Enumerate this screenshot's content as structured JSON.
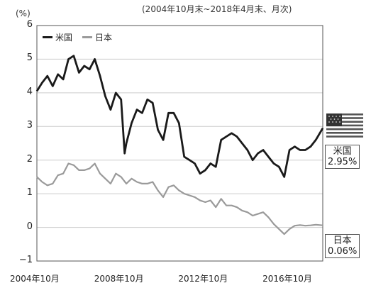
{
  "header": {
    "subtitle": "(2004年10月末~2018年4月末、月次)",
    "unit": "(%)"
  },
  "legend": {
    "us": "米国",
    "jp": "日本"
  },
  "end_labels": {
    "us_name": "米国",
    "us_value": "2.95%",
    "jp_name": "日本",
    "jp_value": "0.06%"
  },
  "colors": {
    "us": "#1a1a1a",
    "jp": "#9a9a9a",
    "grid": "#cccccc",
    "frame": "#555555"
  },
  "icons": {
    "us_flag": "us-flag-icon"
  },
  "chart_data": {
    "type": "line",
    "title": "",
    "subtitle": "(2004年10月末~2018年4月末、月次)",
    "xlabel": "",
    "ylabel": "(%)",
    "x_ticks": [
      "2004年10月",
      "2008年10月",
      "2012年10月",
      "2016年10月"
    ],
    "y_ticks": [
      "6",
      "5",
      "4",
      "3",
      "2",
      "1",
      "0",
      "−1"
    ],
    "ylim": [
      -1,
      6
    ],
    "xlim": [
      2004.75,
      2018.33
    ],
    "grid": true,
    "legend_position": "top-left",
    "series": [
      {
        "name": "米国",
        "x": [
          2004.75,
          2005.0,
          2005.25,
          2005.5,
          2005.75,
          2006.0,
          2006.25,
          2006.5,
          2006.75,
          2007.0,
          2007.25,
          2007.5,
          2007.75,
          2008.0,
          2008.25,
          2008.5,
          2008.75,
          2008.92,
          2009.0,
          2009.25,
          2009.5,
          2009.75,
          2010.0,
          2010.25,
          2010.5,
          2010.75,
          2011.0,
          2011.25,
          2011.5,
          2011.75,
          2012.0,
          2012.25,
          2012.5,
          2012.75,
          2013.0,
          2013.25,
          2013.5,
          2013.75,
          2014.0,
          2014.25,
          2014.5,
          2014.75,
          2015.0,
          2015.25,
          2015.5,
          2015.75,
          2016.0,
          2016.25,
          2016.5,
          2016.75,
          2017.0,
          2017.25,
          2017.5,
          2017.75,
          2018.0,
          2018.33
        ],
        "values": [
          4.05,
          4.3,
          4.5,
          4.2,
          4.55,
          4.4,
          5.0,
          5.1,
          4.6,
          4.8,
          4.7,
          5.0,
          4.5,
          3.9,
          3.5,
          4.0,
          3.8,
          2.2,
          2.5,
          3.1,
          3.5,
          3.4,
          3.8,
          3.7,
          2.9,
          2.6,
          3.4,
          3.4,
          3.1,
          2.1,
          2.0,
          1.9,
          1.6,
          1.7,
          1.9,
          1.8,
          2.6,
          2.7,
          2.8,
          2.7,
          2.5,
          2.3,
          2.0,
          2.2,
          2.3,
          2.1,
          1.9,
          1.8,
          1.5,
          2.3,
          2.4,
          2.3,
          2.3,
          2.4,
          2.6,
          2.95
        ]
      },
      {
        "name": "日本",
        "x": [
          2004.75,
          2005.0,
          2005.25,
          2005.5,
          2005.75,
          2006.0,
          2006.25,
          2006.5,
          2006.75,
          2007.0,
          2007.25,
          2007.5,
          2007.75,
          2008.0,
          2008.25,
          2008.5,
          2008.75,
          2009.0,
          2009.25,
          2009.5,
          2009.75,
          2010.0,
          2010.25,
          2010.5,
          2010.75,
          2011.0,
          2011.25,
          2011.5,
          2011.75,
          2012.0,
          2012.25,
          2012.5,
          2012.75,
          2013.0,
          2013.25,
          2013.5,
          2013.75,
          2014.0,
          2014.25,
          2014.5,
          2014.75,
          2015.0,
          2015.25,
          2015.5,
          2015.75,
          2016.0,
          2016.25,
          2016.5,
          2016.75,
          2017.0,
          2017.25,
          2017.5,
          2017.75,
          2018.0,
          2018.33
        ],
        "values": [
          1.5,
          1.35,
          1.25,
          1.3,
          1.55,
          1.6,
          1.9,
          1.85,
          1.7,
          1.7,
          1.75,
          1.9,
          1.6,
          1.45,
          1.3,
          1.6,
          1.5,
          1.3,
          1.45,
          1.35,
          1.3,
          1.3,
          1.35,
          1.1,
          0.9,
          1.2,
          1.25,
          1.1,
          1.0,
          0.95,
          0.9,
          0.8,
          0.75,
          0.8,
          0.6,
          0.85,
          0.65,
          0.65,
          0.6,
          0.5,
          0.45,
          0.35,
          0.4,
          0.45,
          0.3,
          0.1,
          -0.05,
          -0.2,
          -0.05,
          0.05,
          0.07,
          0.05,
          0.06,
          0.08,
          0.06
        ]
      }
    ]
  }
}
